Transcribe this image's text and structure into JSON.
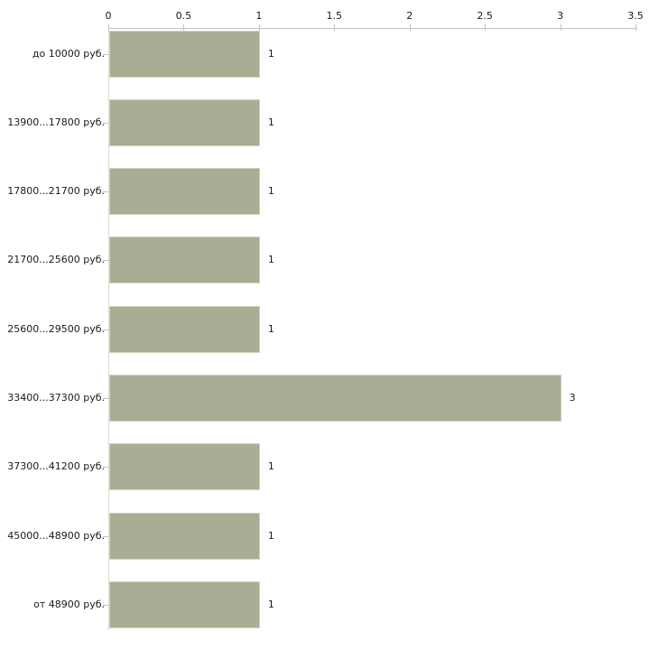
{
  "chart_data": {
    "type": "bar",
    "orientation": "horizontal",
    "title": "",
    "xlabel": "",
    "ylabel": "",
    "categories": [
      "до 10000 руб.",
      "13900...17800 руб.",
      "17800...21700 руб.",
      "21700...25600 руб.",
      "25600...29500 руб.",
      "33400...37300 руб.",
      "37300...41200 руб.",
      "45000...48900 руб.",
      "от 48900 руб."
    ],
    "values": [
      1,
      1,
      1,
      1,
      1,
      3,
      1,
      1,
      1
    ],
    "value_labels": [
      "1",
      "1",
      "1",
      "1",
      "1",
      "3",
      "1",
      "1",
      "1"
    ],
    "xlim": [
      0,
      3.5
    ],
    "x_ticks": [
      0,
      0.5,
      1,
      1.5,
      2,
      2.5,
      3,
      3.5
    ],
    "x_tick_labels": [
      "0",
      "0.5",
      "1",
      "1.5",
      "2",
      "2.5",
      "3",
      "3.5"
    ],
    "axis_position": "top",
    "grid": false,
    "legend": false,
    "colors": {
      "bar_fill": "#a9ad94",
      "bar_edge": "#d2d4bd",
      "x_axis_line": "#c6c6c6",
      "y_axis_line": "#d9d9d4",
      "tick_mark": "#c3c6a2",
      "text": "#1a1a1a",
      "background": "#ffffff"
    }
  }
}
